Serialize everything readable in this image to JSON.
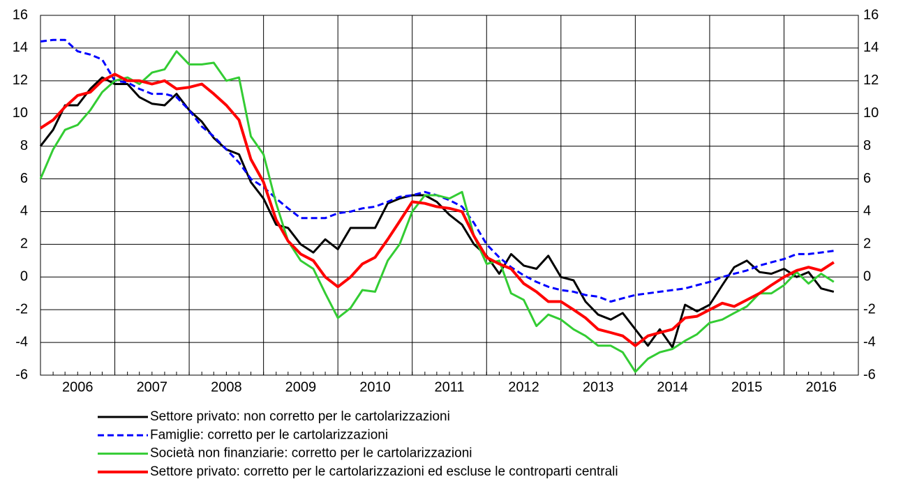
{
  "chart_data": {
    "type": "line",
    "x": [
      2006,
      2006.17,
      2006.33,
      2006.5,
      2006.67,
      2006.83,
      2007,
      2007.17,
      2007.33,
      2007.5,
      2007.67,
      2007.83,
      2008,
      2008.17,
      2008.33,
      2008.5,
      2008.67,
      2008.83,
      2009,
      2009.17,
      2009.33,
      2009.5,
      2009.67,
      2009.83,
      2010,
      2010.17,
      2010.33,
      2010.5,
      2010.67,
      2010.83,
      2011,
      2011.17,
      2011.33,
      2011.5,
      2011.67,
      2011.83,
      2012,
      2012.17,
      2012.33,
      2012.5,
      2012.67,
      2012.83,
      2013,
      2013.17,
      2013.33,
      2013.5,
      2013.67,
      2013.83,
      2014,
      2014.17,
      2014.33,
      2014.5,
      2014.67,
      2014.83,
      2015,
      2015.17,
      2015.33,
      2015.5,
      2015.67,
      2015.83,
      2016,
      2016.17,
      2016.33,
      2016.5,
      2016.67
    ],
    "xlim": [
      2006,
      2017
    ],
    "xticks": [
      {
        "value": 2006.5,
        "label": "2006"
      },
      {
        "value": 2007.5,
        "label": "2007"
      },
      {
        "value": 2008.5,
        "label": "2008"
      },
      {
        "value": 2009.5,
        "label": "2009"
      },
      {
        "value": 2010.5,
        "label": "2010"
      },
      {
        "value": 2011.5,
        "label": "2011"
      },
      {
        "value": 2012.5,
        "label": "2012"
      },
      {
        "value": 2013.5,
        "label": "2013"
      },
      {
        "value": 2014.5,
        "label": "2014"
      },
      {
        "value": 2015.5,
        "label": "2015"
      },
      {
        "value": 2016.5,
        "label": "2016"
      }
    ],
    "ylim": [
      -6,
      16
    ],
    "yticks": [
      -6,
      -4,
      -2,
      0,
      2,
      4,
      6,
      8,
      10,
      12,
      14,
      16
    ],
    "y2lim": [
      -6,
      16
    ],
    "y2ticks": [
      -6,
      -4,
      -2,
      0,
      2,
      4,
      6,
      8,
      10,
      12,
      14,
      16
    ],
    "grid": true,
    "series": [
      {
        "name": "Settore privato: non corretto per le cartolarizzazioni",
        "color": "#000000",
        "dash": "solid",
        "values": [
          8.0,
          9.0,
          10.5,
          10.5,
          11.5,
          12.2,
          11.8,
          11.8,
          11.0,
          10.6,
          10.5,
          11.2,
          10.2,
          9.5,
          8.5,
          7.8,
          7.5,
          5.8,
          4.8,
          3.2,
          3.0,
          2.0,
          1.5,
          2.3,
          1.7,
          3.0,
          3.0,
          3.0,
          4.5,
          4.8,
          5.0,
          5.0,
          4.6,
          3.8,
          3.2,
          2.0,
          1.3,
          0.2,
          1.4,
          0.7,
          0.5,
          1.3,
          0.0,
          -0.2,
          -1.5,
          -2.3,
          -2.6,
          -2.2,
          -3.2,
          -4.2,
          -3.2,
          -4.3,
          -1.7,
          -2.1,
          -1.7,
          -0.5,
          0.6,
          1.0,
          0.3,
          0.2,
          0.5,
          0.0,
          0.3,
          -0.7,
          -0.9
        ]
      },
      {
        "name": "Famiglie: corretto per le cartolarizzazioni",
        "color": "#0000ff",
        "dash": "dashed",
        "values": [
          14.4,
          14.5,
          14.5,
          13.8,
          13.6,
          13.3,
          12.0,
          11.9,
          11.5,
          11.2,
          11.2,
          11.0,
          10.2,
          9.2,
          8.6,
          7.8,
          7.0,
          6.0,
          5.5,
          4.8,
          4.2,
          3.6,
          3.6,
          3.6,
          3.9,
          4.0,
          4.2,
          4.3,
          4.6,
          4.9,
          5.0,
          5.2,
          5.0,
          4.7,
          4.3,
          3.3,
          2.0,
          1.2,
          0.6,
          0.1,
          -0.3,
          -0.6,
          -0.8,
          -0.9,
          -1.1,
          -1.2,
          -1.5,
          -1.3,
          -1.1,
          -1.0,
          -0.9,
          -0.8,
          -0.7,
          -0.5,
          -0.3,
          0.0,
          0.2,
          0.4,
          0.7,
          0.9,
          1.1,
          1.4,
          1.4,
          1.5,
          1.6
        ]
      },
      {
        "name": "Società non finanziarie: corretto per le cartolarizzazioni",
        "color": "#33cc33",
        "dash": "solid",
        "values": [
          6.0,
          7.8,
          9.0,
          9.3,
          10.2,
          11.3,
          12.0,
          12.2,
          11.8,
          12.5,
          12.7,
          13.8,
          13.0,
          13.0,
          13.1,
          12.0,
          12.2,
          8.6,
          7.5,
          4.5,
          2.2,
          1.0,
          0.5,
          -1.0,
          -2.5,
          -1.9,
          -0.8,
          -0.9,
          1.0,
          2.0,
          4.0,
          5.0,
          5.0,
          4.8,
          5.2,
          2.5,
          0.8,
          1.0,
          -1.0,
          -1.4,
          -3.0,
          -2.3,
          -2.6,
          -3.2,
          -3.6,
          -4.2,
          -4.2,
          -4.6,
          -5.8,
          -5.0,
          -4.6,
          -4.4,
          -3.9,
          -3.5,
          -2.8,
          -2.6,
          -2.2,
          -1.8,
          -1.0,
          -1.0,
          -0.5,
          0.3,
          -0.4,
          0.2,
          -0.3
        ]
      },
      {
        "name": "Settore privato: corretto per le cartolarizzazioni ed escluse le controparti centrali",
        "color": "#ff0000",
        "dash": "thick",
        "values": [
          9.1,
          9.6,
          10.4,
          11.1,
          11.3,
          12.0,
          12.4,
          12.0,
          12.0,
          11.8,
          12.0,
          11.5,
          11.6,
          11.8,
          11.2,
          10.5,
          9.6,
          7.2,
          5.8,
          3.5,
          2.2,
          1.4,
          1.0,
          0.0,
          -0.6,
          0.0,
          0.8,
          1.2,
          2.3,
          3.4,
          4.6,
          4.5,
          4.3,
          4.2,
          4.0,
          2.5,
          1.2,
          0.8,
          0.5,
          -0.4,
          -0.9,
          -1.5,
          -1.5,
          -2.0,
          -2.5,
          -3.2,
          -3.4,
          -3.6,
          -4.2,
          -3.6,
          -3.4,
          -3.2,
          -2.5,
          -2.4,
          -2.0,
          -1.6,
          -1.8,
          -1.4,
          -1.0,
          -0.5,
          0.0,
          0.4,
          0.6,
          0.4,
          0.9
        ]
      }
    ]
  }
}
